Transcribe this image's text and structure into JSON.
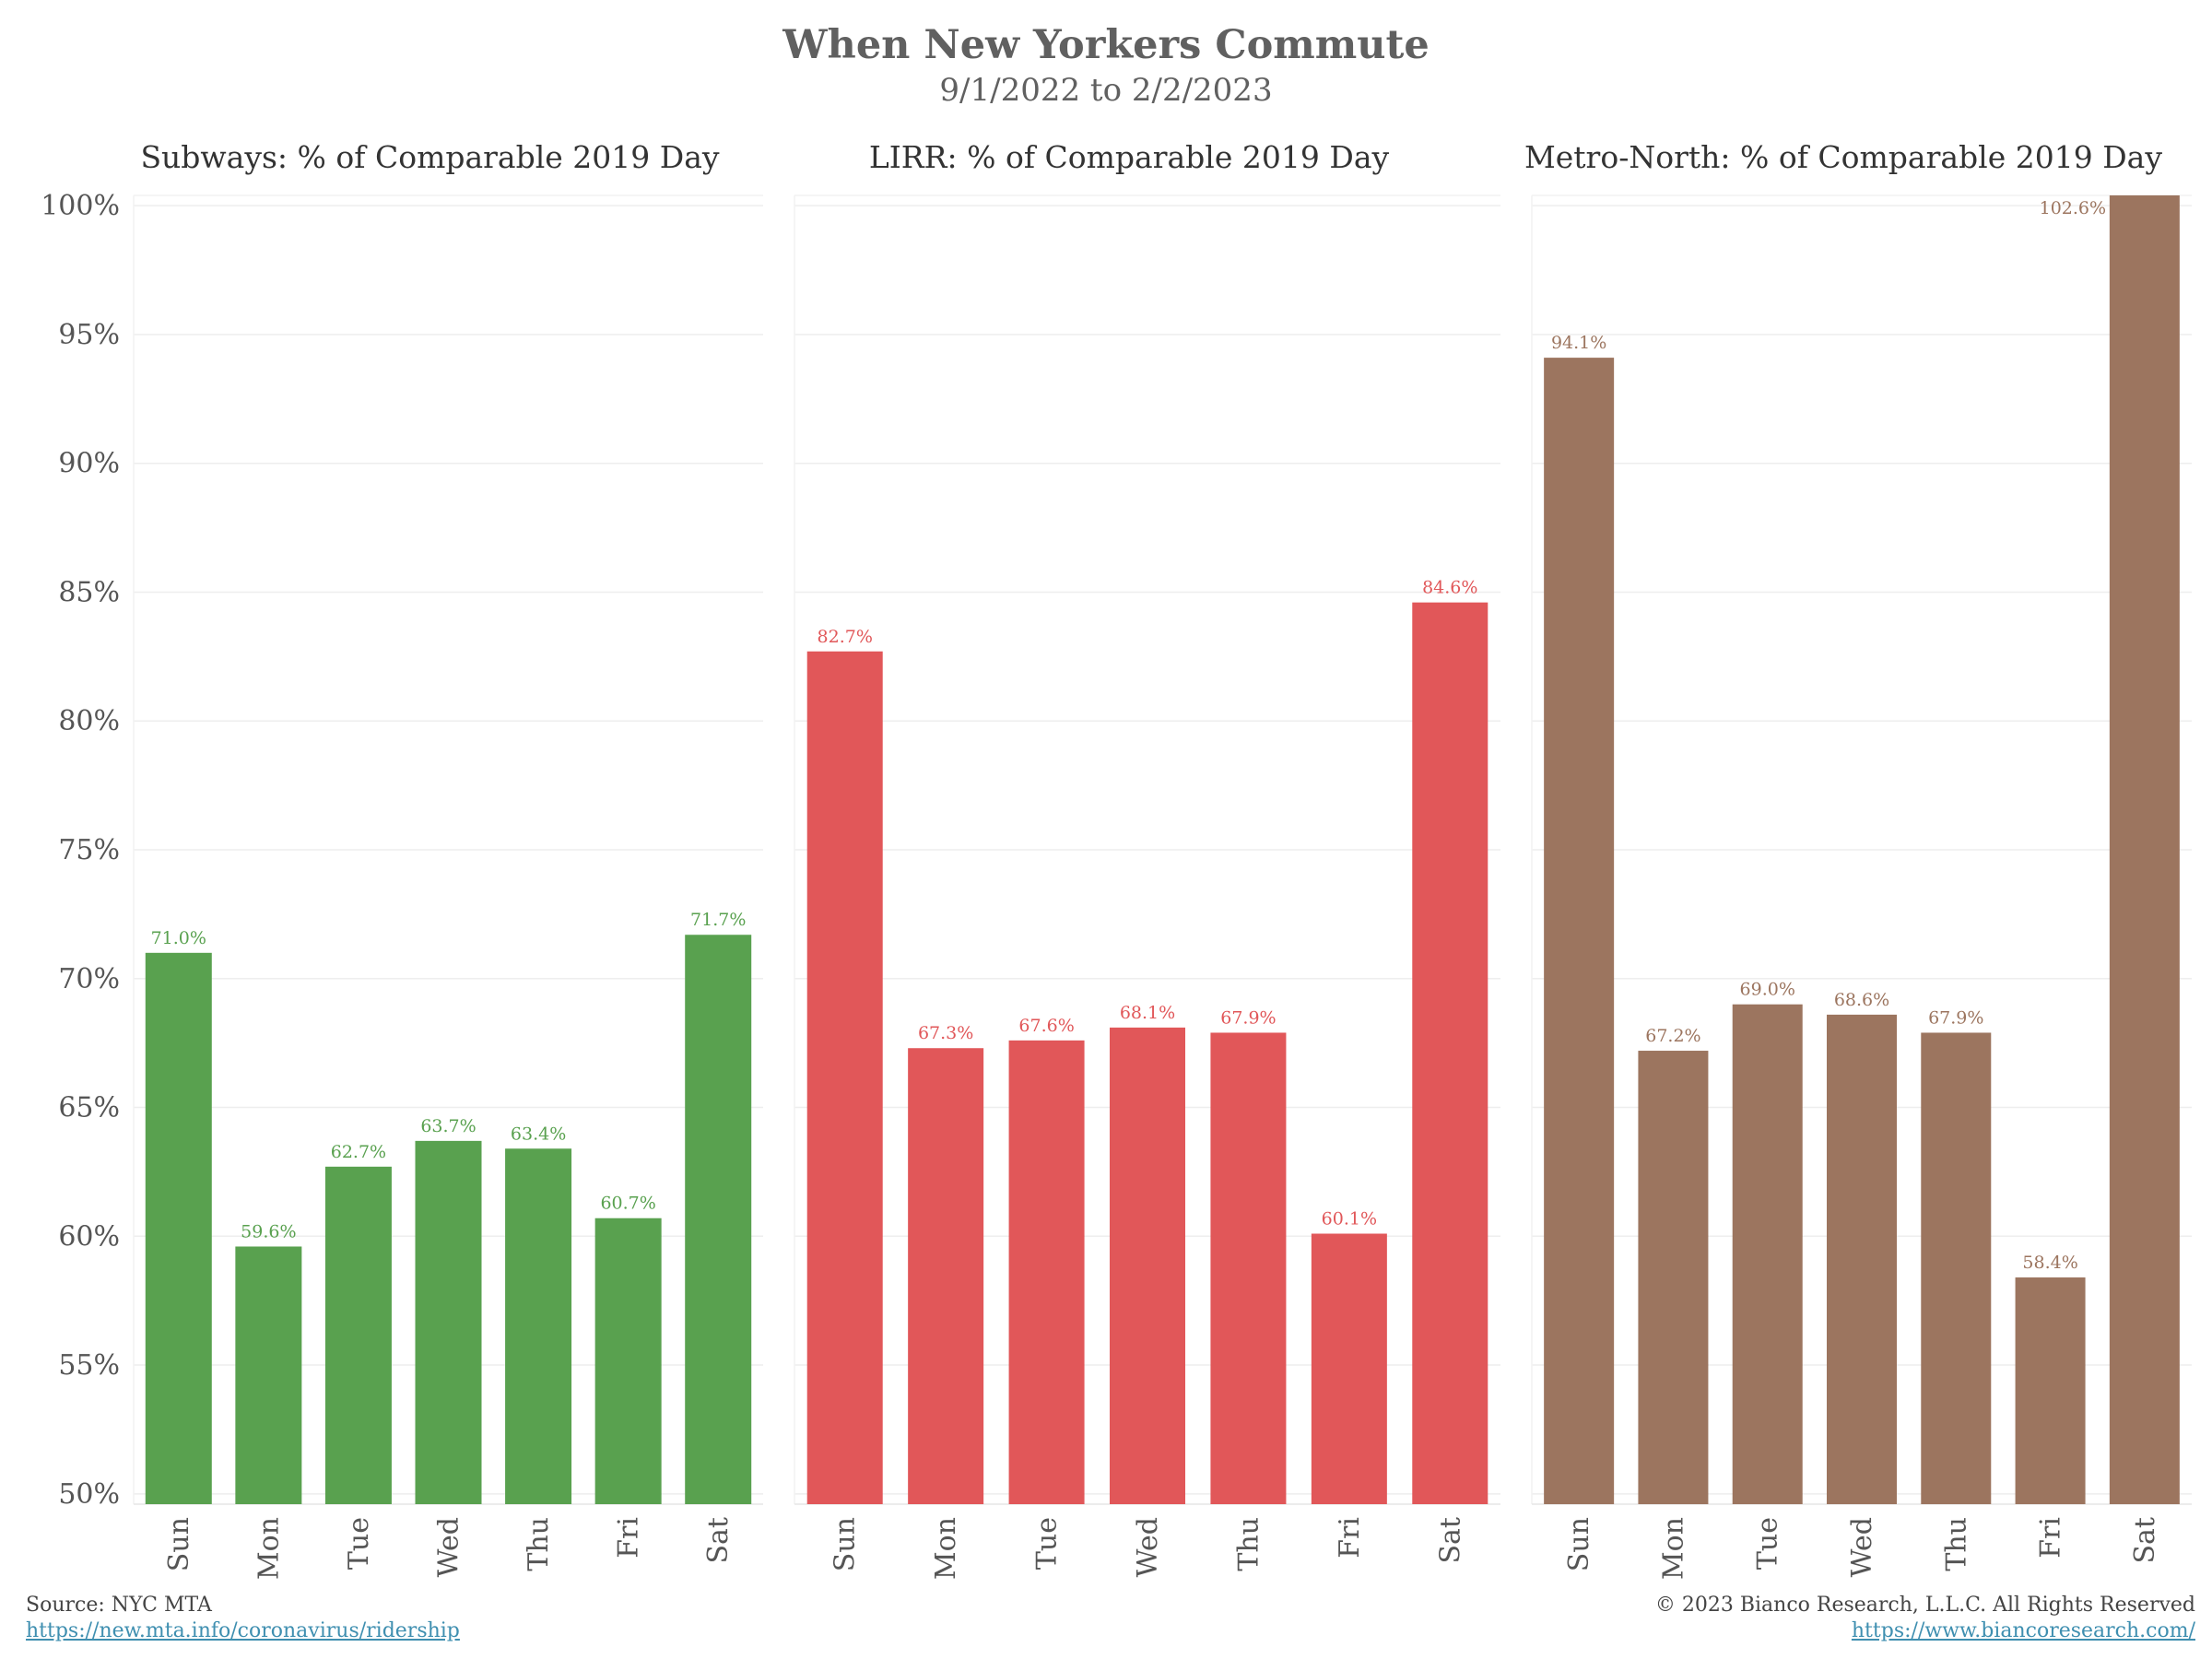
{
  "header": {
    "title": "When New Yorkers Commute",
    "subtitle": "9/1/2022 to 2/2/2023"
  },
  "footer": {
    "source": "Source: NYC MTA",
    "source_link": "https://new.mta.info/coronavirus/ridership",
    "copyright": "© 2023 Bianco Research, L.L.C. All Rights Reserved",
    "site_link": "https://www.biancoresearch.com/"
  },
  "chart_data": [
    {
      "type": "bar",
      "title": "Subways: % of Comparable 2019 Day",
      "categories": [
        "Sun",
        "Mon",
        "Tue",
        "Wed",
        "Thu",
        "Fri",
        "Sat"
      ],
      "values": [
        71.0,
        59.6,
        62.7,
        63.7,
        63.4,
        60.7,
        71.7
      ],
      "labels": [
        "71.0%",
        "59.6%",
        "62.7%",
        "63.7%",
        "63.4%",
        "60.7%",
        "71.7%"
      ],
      "color": "#59a14f",
      "ylim": [
        49.6,
        100.4
      ],
      "yticks": [
        "50%",
        "55%",
        "60%",
        "65%",
        "70%",
        "75%",
        "80%",
        "85%",
        "90%",
        "95%",
        "100%"
      ],
      "grid": true
    },
    {
      "type": "bar",
      "title": "LIRR: % of Comparable 2019 Day",
      "categories": [
        "Sun",
        "Mon",
        "Tue",
        "Wed",
        "Thu",
        "Fri",
        "Sat"
      ],
      "values": [
        82.7,
        67.3,
        67.6,
        68.1,
        67.9,
        60.1,
        84.6
      ],
      "labels": [
        "82.7%",
        "67.3%",
        "67.6%",
        "68.1%",
        "67.9%",
        "60.1%",
        "84.6%"
      ],
      "color": "#e15759",
      "ylim": [
        49.6,
        100.4
      ],
      "grid": true
    },
    {
      "type": "bar",
      "title": "Metro-North: % of Comparable 2019 Day",
      "categories": [
        "Sun",
        "Mon",
        "Tue",
        "Wed",
        "Thu",
        "Fri",
        "Sat"
      ],
      "values": [
        94.1,
        67.2,
        69.0,
        68.6,
        67.9,
        58.4,
        102.6
      ],
      "labels": [
        "94.1%",
        "67.2%",
        "69.0%",
        "68.6%",
        "67.9%",
        "58.4%",
        "102.6%"
      ],
      "color": "#9c755f",
      "ylim": [
        49.6,
        100.4
      ],
      "grid": true
    }
  ]
}
